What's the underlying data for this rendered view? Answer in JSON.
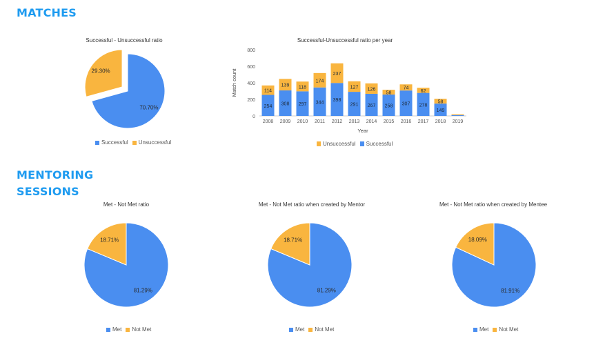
{
  "sections": {
    "matches": "MATCHES",
    "mentoring": "MENTORING SESSIONS"
  },
  "colors": {
    "blue": "#4a8ef0",
    "orange": "#f9b53f"
  },
  "chart_data": [
    {
      "id": "matches-pie",
      "type": "pie",
      "title": "Successful - Unsuccessful ratio",
      "labels": [
        "Successful",
        "Unsuccessful"
      ],
      "values": [
        70.7,
        29.3
      ],
      "value_labels": [
        "70.70%",
        "29.30%"
      ],
      "exploded": [
        false,
        true
      ],
      "legend": "bottom"
    },
    {
      "id": "matches-bar",
      "type": "bar",
      "stacked": true,
      "title": "Successful-Unsuccessful ratio per year",
      "xlabel": "Year",
      "ylabel": "Match count",
      "ylim": [
        0,
        800
      ],
      "yticks": [
        0,
        200,
        400,
        600,
        800
      ],
      "categories": [
        "2008",
        "2009",
        "2010",
        "2011",
        "2012",
        "2013",
        "2014",
        "2015",
        "2016",
        "2017",
        "2018",
        "2019"
      ],
      "series": [
        {
          "name": "Successful",
          "values": [
            254,
            308,
            297,
            344,
            398,
            291,
            267,
            258,
            307,
            278,
            149,
            10
          ]
        },
        {
          "name": "Unsuccessful",
          "values": [
            114,
            139,
            118,
            174,
            237,
            127,
            126,
            58,
            74,
            62,
            58,
            10
          ]
        }
      ],
      "legend_labels": [
        "Unsuccessful",
        "Successful"
      ],
      "legend": "bottom",
      "grid": false
    },
    {
      "id": "met-pie-1",
      "type": "pie",
      "title": "Met - Not Met ratio",
      "labels": [
        "Met",
        "Not Met"
      ],
      "values": [
        81.29,
        18.71
      ],
      "value_labels": [
        "81.29%",
        "18.71%"
      ],
      "legend": "bottom"
    },
    {
      "id": "met-pie-2",
      "type": "pie",
      "title": "Met - Not Met ratio when created by Mentor",
      "labels": [
        "Met",
        "Not Met"
      ],
      "values": [
        81.29,
        18.71
      ],
      "value_labels": [
        "81.29%",
        "18.71%"
      ],
      "legend": "bottom"
    },
    {
      "id": "met-pie-3",
      "type": "pie",
      "title": "Met - Not Met ratio when created by Mentee",
      "labels": [
        "Met",
        "Not Met"
      ],
      "values": [
        81.91,
        18.09
      ],
      "value_labels": [
        "81.91%",
        "18.09%"
      ],
      "legend": "bottom"
    }
  ]
}
